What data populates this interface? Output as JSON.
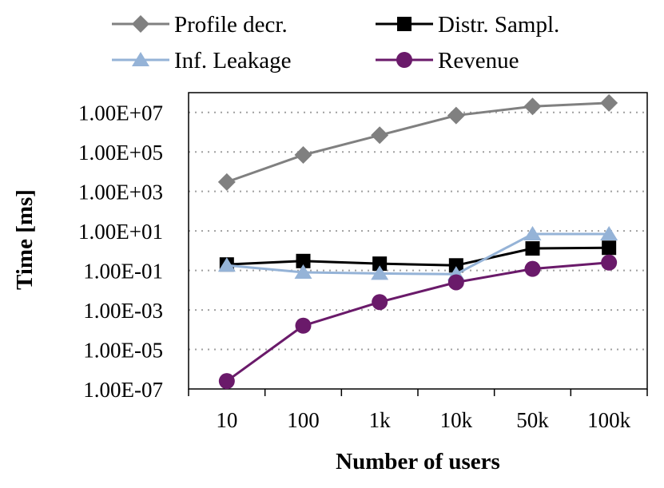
{
  "chart_data": {
    "type": "line",
    "categories": [
      "10",
      "100",
      "1k",
      "10k",
      "50k",
      "100k"
    ],
    "xlabel": "Number of users",
    "ylabel": "Time [ms]",
    "yscale": "log",
    "ylim": [
      1e-07,
      100000000.0
    ],
    "y_ticks": [
      {
        "value": 1e-07,
        "label": "1.00E-07"
      },
      {
        "value": 1e-05,
        "label": "1.00E-05"
      },
      {
        "value": 0.001,
        "label": "1.00E-03"
      },
      {
        "value": 0.1,
        "label": "1.00E-01"
      },
      {
        "value": 10.0,
        "label": "1.00E+01"
      },
      {
        "value": 1000.0,
        "label": "1.00E+03"
      },
      {
        "value": 100000.0,
        "label": "1.00E+05"
      },
      {
        "value": 10000000.0,
        "label": "1.00E+07"
      }
    ],
    "grid": "horizontal dotted",
    "legend_position": "top",
    "series": [
      {
        "name": "Profile decr.",
        "color": "#808080",
        "marker": "diamond",
        "values": [
          3000,
          70000,
          700000,
          7000000,
          20000000,
          30000000
        ]
      },
      {
        "name": "Distr. Sampl.",
        "color": "#000000",
        "marker": "square",
        "values": [
          0.2,
          0.3,
          0.22,
          0.18,
          1.3,
          1.4
        ]
      },
      {
        "name": "Inf. Leakage",
        "color": "#95b3d7",
        "marker": "triangle",
        "values": [
          0.18,
          0.08,
          0.07,
          0.065,
          7,
          7
        ]
      },
      {
        "name": "Revenue",
        "color": "#6a1a6a",
        "marker": "circle",
        "values": [
          2.5e-07,
          0.00016,
          0.0025,
          0.025,
          0.12,
          0.25
        ]
      }
    ]
  }
}
